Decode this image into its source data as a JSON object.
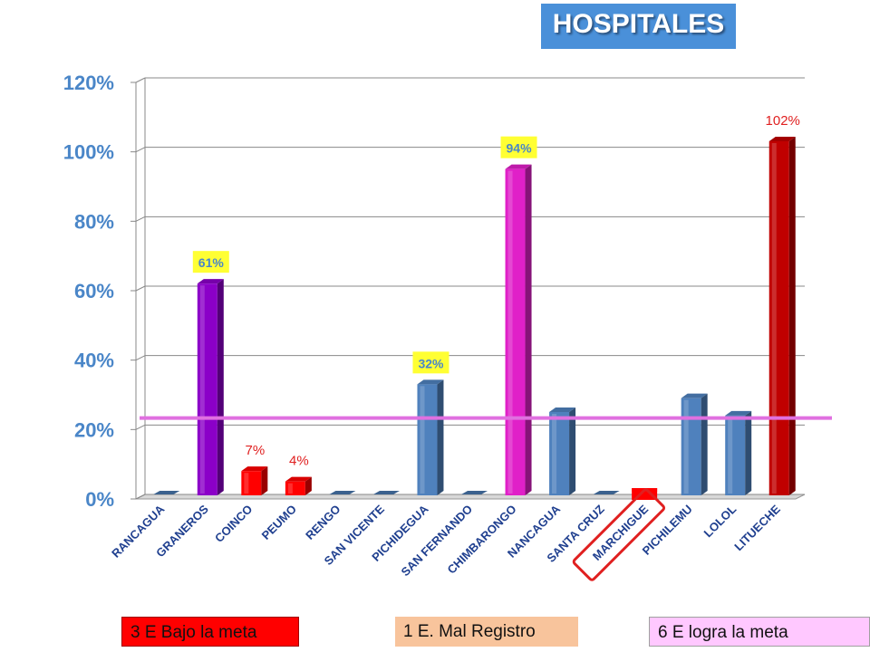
{
  "title": "HOSPITALES",
  "chart_data": {
    "type": "bar",
    "categories": [
      "RANCAGUA",
      "GRANEROS",
      "COINCO",
      "PEUMO",
      "RENGO",
      "SAN VICENTE",
      "PICHIDEGUA",
      "SAN FERNANDO",
      "CHIMBARONGO",
      "NANCAGUA",
      "SANTA CRUZ",
      "MARCHIGUE",
      "PICHILEMU",
      "LOLOL",
      "LITUECHE"
    ],
    "values": [
      0,
      61,
      7,
      4,
      0,
      0,
      32,
      0,
      94,
      24,
      0,
      0,
      28,
      23,
      102
    ],
    "bar_colors": [
      "#4f81bd",
      "#8b00c8",
      "#ff0000",
      "#ff0000",
      "#4f81bd",
      "#4f81bd",
      "#4f81bd",
      "#4f81bd",
      "#e020c8",
      "#4f81bd",
      "#4f81bd",
      "#ff0000",
      "#4f81bd",
      "#4f81bd",
      "#c00000"
    ],
    "data_labels": [
      "",
      "61%",
      "7%",
      "4%",
      "",
      "",
      "32%",
      "",
      "94%",
      "",
      "",
      "",
      "",
      "",
      "102%"
    ],
    "data_label_styles": [
      "",
      "yellow",
      "red",
      "red",
      "",
      "",
      "yellow",
      "",
      "yellow",
      "",
      "",
      "",
      "",
      "",
      "red"
    ],
    "y_ticks": [
      "0%",
      "20%",
      "40%",
      "60%",
      "80%",
      "100%",
      "120%"
    ],
    "ylim": [
      0,
      120
    ],
    "reference_line": 22,
    "reference_line_color": "#e070e0",
    "highlighted_category": "MARCHIGUE",
    "grid": true
  },
  "legend": {
    "bajo": "3 E Bajo la meta",
    "mal": "1 E. Mal Registro",
    "logra": "6 E logra la meta"
  }
}
